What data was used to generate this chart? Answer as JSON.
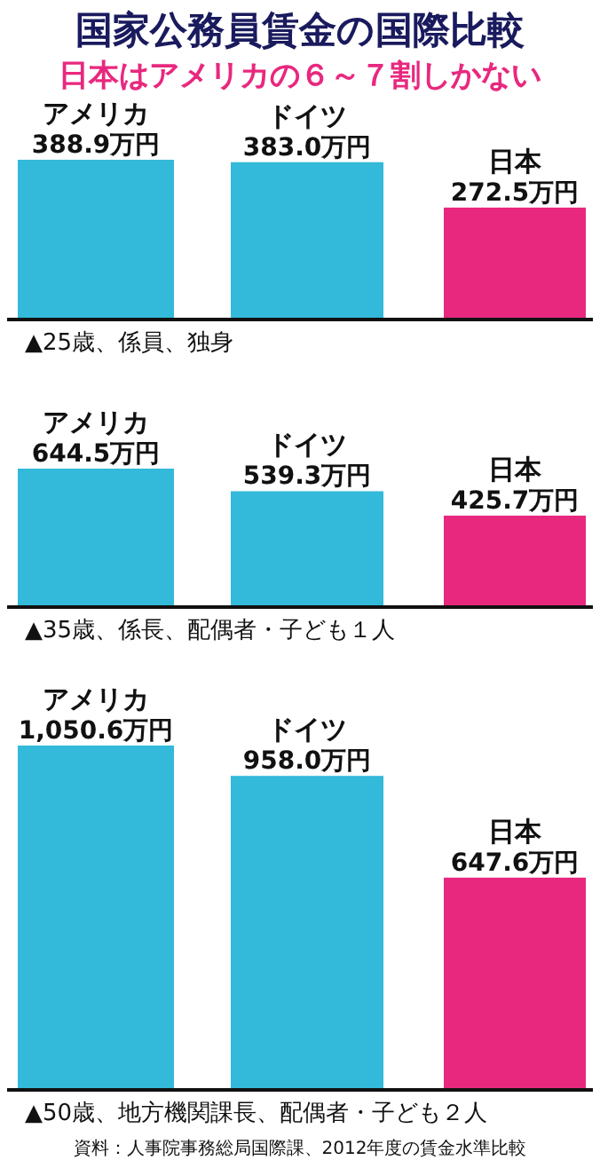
{
  "chart_data": [
    {
      "type": "bar",
      "title": "国家公務員賃金の国際比較",
      "subtitle": "日本はアメリカの６～７割しかない",
      "categories": [
        "アメリカ",
        "ドイツ",
        "日本"
      ],
      "values": [
        388.9,
        383.0,
        272.5
      ],
      "value_labels": [
        "388.9万円",
        "383.0万円",
        "272.5万円"
      ],
      "colors": [
        "#33b9d9",
        "#33b9d9",
        "#e8287f"
      ],
      "xlabel": "▲25歳、係員、独身"
    },
    {
      "type": "bar",
      "categories": [
        "アメリカ",
        "ドイツ",
        "日本"
      ],
      "values": [
        644.5,
        539.3,
        425.7
      ],
      "value_labels": [
        "644.5万円",
        "539.3万円",
        "425.7万円"
      ],
      "colors": [
        "#33b9d9",
        "#33b9d9",
        "#e8287f"
      ],
      "xlabel": "▲35歳、係長、配偶者・子ども１人"
    },
    {
      "type": "bar",
      "categories": [
        "アメリカ",
        "ドイツ",
        "日本"
      ],
      "values": [
        1050.6,
        958.0,
        647.6
      ],
      "value_labels": [
        "1,050.6万円",
        "958.0万円",
        "647.6万円"
      ],
      "colors": [
        "#33b9d9",
        "#33b9d9",
        "#e8287f"
      ],
      "xlabel": "▲50歳、地方機関課長、配偶者・子ども２人",
      "annotations": [
        "資料：人事院事務総局国際課、2012年度の賃金水準比較"
      ]
    }
  ]
}
